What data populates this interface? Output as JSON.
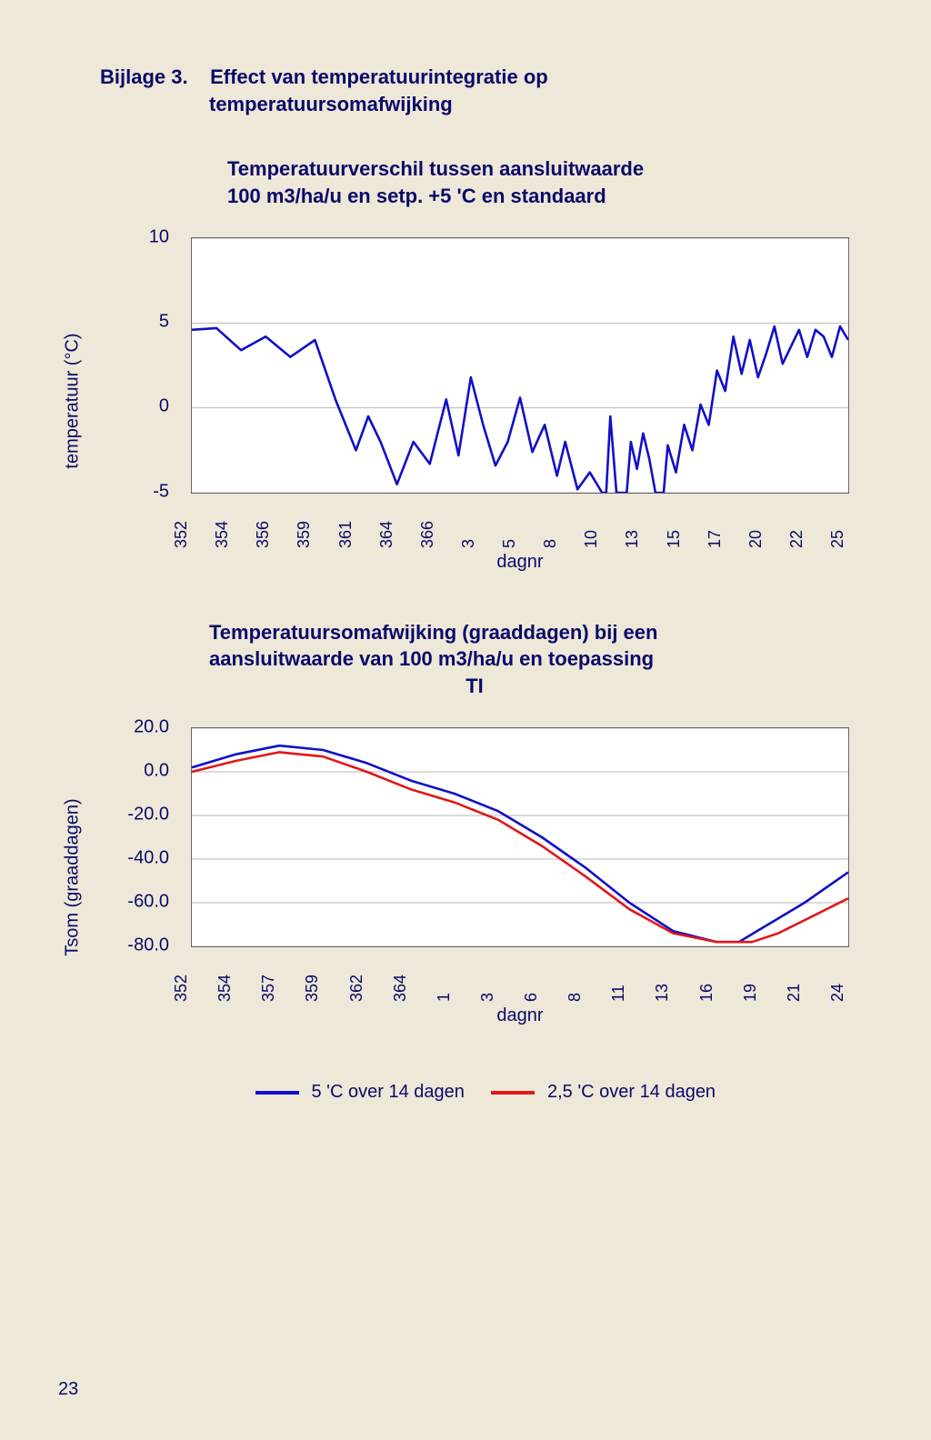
{
  "page_number": "23",
  "heading": {
    "label": "Bijlage 3.",
    "title": "Effect van temperatuurintegratie op",
    "sub": "temperatuursomafwijking"
  },
  "chart1": {
    "title_line1": "Temperatuurverschil tussen aansluitwaarde",
    "title_line2": "100 m3/ha/u en setp. +5 'C en standaard",
    "ylabel": "temperatuur (°C)",
    "xlabel": "dagnr",
    "ylim": [
      -5,
      10
    ],
    "yticks": [
      10,
      5,
      0,
      -5
    ],
    "xticks": [
      "352",
      "354",
      "356",
      "359",
      "361",
      "364",
      "366",
      "3",
      "5",
      "8",
      "10",
      "13",
      "15",
      "17",
      "20",
      "22",
      "25"
    ],
    "line_color": "#1010c8",
    "line_width": 2.6,
    "background_color": "#ffffff",
    "grid_color": "#b8b8b8",
    "series": [
      [
        0,
        4.6
      ],
      [
        0.6,
        4.7
      ],
      [
        1.2,
        3.4
      ],
      [
        1.8,
        4.2
      ],
      [
        2.4,
        3.0
      ],
      [
        3.0,
        4.0
      ],
      [
        3.5,
        0.5
      ],
      [
        4.0,
        -2.5
      ],
      [
        4.3,
        -0.5
      ],
      [
        4.6,
        -2.0
      ],
      [
        5.0,
        -4.5
      ],
      [
        5.4,
        -2.0
      ],
      [
        5.8,
        -3.3
      ],
      [
        6.2,
        0.5
      ],
      [
        6.5,
        -2.8
      ],
      [
        6.8,
        1.8
      ],
      [
        7.1,
        -1.0
      ],
      [
        7.4,
        -3.4
      ],
      [
        7.7,
        -2.0
      ],
      [
        8.0,
        0.6
      ],
      [
        8.3,
        -2.6
      ],
      [
        8.6,
        -1.0
      ],
      [
        8.9,
        -4.0
      ],
      [
        9.1,
        -2.0
      ],
      [
        9.4,
        -4.8
      ],
      [
        9.7,
        -3.8
      ],
      [
        10.0,
        -5.0
      ],
      [
        10.1,
        -5.0
      ],
      [
        10.2,
        -0.5
      ],
      [
        10.35,
        -5.0
      ],
      [
        10.6,
        -5.0
      ],
      [
        10.7,
        -2.0
      ],
      [
        10.85,
        -3.6
      ],
      [
        11.0,
        -1.5
      ],
      [
        11.15,
        -3.0
      ],
      [
        11.3,
        -5.0
      ],
      [
        11.5,
        -5.0
      ],
      [
        11.6,
        -2.2
      ],
      [
        11.8,
        -3.8
      ],
      [
        12.0,
        -1.0
      ],
      [
        12.2,
        -2.5
      ],
      [
        12.4,
        0.2
      ],
      [
        12.6,
        -1.0
      ],
      [
        12.8,
        2.2
      ],
      [
        13.0,
        1.0
      ],
      [
        13.2,
        4.2
      ],
      [
        13.4,
        2.0
      ],
      [
        13.6,
        4.0
      ],
      [
        13.8,
        1.8
      ],
      [
        14.0,
        3.2
      ],
      [
        14.2,
        4.8
      ],
      [
        14.4,
        2.6
      ],
      [
        14.6,
        3.6
      ],
      [
        14.8,
        4.6
      ],
      [
        15.0,
        3.0
      ],
      [
        15.2,
        4.6
      ],
      [
        15.4,
        4.2
      ],
      [
        15.6,
        3.0
      ],
      [
        15.8,
        4.8
      ],
      [
        16.0,
        4.0
      ]
    ]
  },
  "chart2": {
    "title_line1": "Temperatuursomafwijking (graaddagen) bij een",
    "title_line2": "aansluitwaarde van 100 m3/ha/u en toepassing",
    "title_line3": "TI",
    "ylabel": "Tsom (graaddagen)",
    "xlabel": "dagnr",
    "ylim": [
      -80,
      20
    ],
    "yticks": [
      "20.0",
      "0.0",
      "-20.0",
      "-40.0",
      "-60.0",
      "-80.0"
    ],
    "ytick_vals": [
      20,
      0,
      -20,
      -40,
      -60,
      -80
    ],
    "xticks": [
      "352",
      "354",
      "357",
      "359",
      "362",
      "364",
      "1",
      "3",
      "6",
      "8",
      "11",
      "13",
      "16",
      "19",
      "21",
      "24"
    ],
    "background_color": "#ffffff",
    "grid_color": "#b8b8b8",
    "series_a": {
      "color": "#1010c8",
      "width": 2.6,
      "data": [
        [
          0,
          2
        ],
        [
          1,
          8
        ],
        [
          2,
          12
        ],
        [
          3,
          10
        ],
        [
          4,
          4
        ],
        [
          5,
          -4
        ],
        [
          6,
          -10
        ],
        [
          7,
          -18
        ],
        [
          8,
          -30
        ],
        [
          9,
          -44
        ],
        [
          10,
          -60
        ],
        [
          11,
          -73
        ],
        [
          12,
          -78
        ],
        [
          12.5,
          -78
        ],
        [
          13,
          -72
        ],
        [
          14,
          -60
        ],
        [
          15,
          -46
        ]
      ]
    },
    "series_b": {
      "color": "#e01818",
      "width": 2.6,
      "data": [
        [
          0,
          0
        ],
        [
          1,
          5
        ],
        [
          2,
          9
        ],
        [
          3,
          7
        ],
        [
          4,
          0
        ],
        [
          5,
          -8
        ],
        [
          6,
          -14
        ],
        [
          7,
          -22
        ],
        [
          8,
          -34
        ],
        [
          9,
          -48
        ],
        [
          10,
          -63
        ],
        [
          11,
          -74
        ],
        [
          12,
          -78
        ],
        [
          12.8,
          -78
        ],
        [
          13.4,
          -74
        ],
        [
          14.2,
          -66
        ],
        [
          15,
          -58
        ]
      ]
    },
    "legend_a": "5 'C over 14 dagen",
    "legend_b": "2,5 'C over 14 dagen"
  }
}
